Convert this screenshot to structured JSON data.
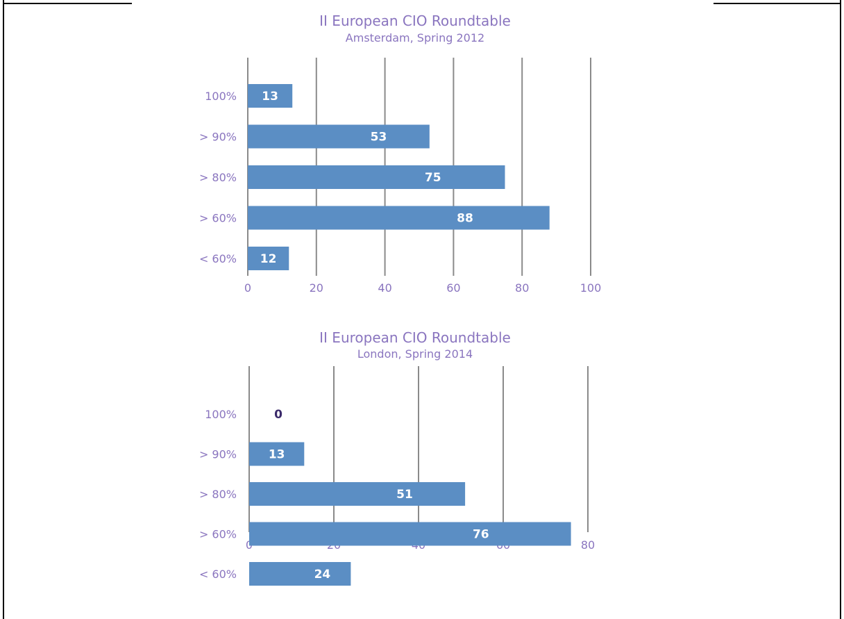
{
  "chart_data": [
    {
      "type": "bar",
      "orientation": "horizontal",
      "title": "II European CIO Roundtable",
      "subtitle": "Amsterdam, Spring 2012",
      "categories": [
        "100%",
        "> 90%",
        "> 80%",
        "> 60%",
        "< 60%"
      ],
      "values": [
        13,
        53,
        75,
        88,
        12
      ],
      "xlim": [
        0,
        100
      ],
      "xticks": [
        0,
        20,
        40,
        60,
        80,
        100
      ],
      "grid": true,
      "bar_color": "#5b8ec4",
      "gridline_color": "#8a8a8a",
      "text_color": "#8a75bf"
    },
    {
      "type": "bar",
      "orientation": "horizontal",
      "title": "II European CIO Roundtable",
      "subtitle": "London, Spring 2014",
      "categories": [
        "100%",
        "> 90%",
        "> 80%",
        "> 60%",
        "< 60%"
      ],
      "values": [
        0,
        13,
        51,
        76,
        24
      ],
      "xlim": [
        0,
        80
      ],
      "xticks": [
        0,
        20,
        40,
        60,
        80
      ],
      "grid": true,
      "bar_color": "#5b8ec4",
      "gridline_color": "#8a8a8a",
      "text_color": "#8a75bf"
    }
  ]
}
